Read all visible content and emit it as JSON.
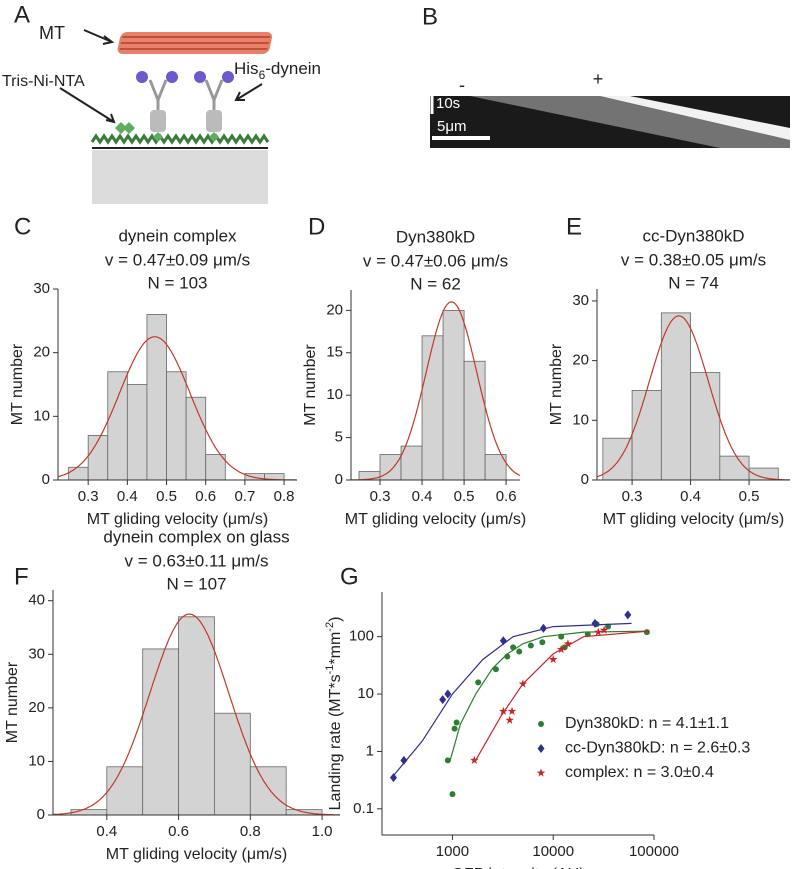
{
  "panel_letters": [
    "A",
    "B",
    "C",
    "D",
    "E",
    "F",
    "G"
  ],
  "diagram": {
    "mt": "MT",
    "linker": "Tris-Ni-NTA",
    "dynein": [
      "His",
      "6",
      "-dynein"
    ]
  },
  "kymograph": {
    "minus": "-",
    "plus": "+",
    "time_scale": "10s",
    "length_scale": "5μm"
  },
  "chart_data": [
    {
      "type": "histogram",
      "title": "dynein complex",
      "subtitle": "v = 0.47±0.09 μm/s",
      "annotation": "N = 103",
      "bins": [
        0.25,
        0.3,
        0.35,
        0.4,
        0.45,
        0.5,
        0.55,
        0.6,
        0.65,
        0.7,
        0.75,
        0.8
      ],
      "values": [
        2,
        7,
        17,
        15,
        26,
        17,
        13,
        4,
        0,
        1,
        1
      ],
      "color": "#d3d3d3",
      "fit": {
        "color": "#c0392b",
        "mean": 0.47,
        "sd": 0.09,
        "peak": 22.5
      },
      "xlim": [
        0.223,
        0.833
      ],
      "xticks": [
        0.3,
        0.4,
        0.5,
        0.6,
        0.7,
        0.8
      ],
      "ylim": [
        0,
        30
      ],
      "yticks": [
        0,
        10,
        20,
        30
      ],
      "xlabel": "MT gliding velocity (μm/s)",
      "ylabel": "MT number"
    },
    {
      "type": "histogram",
      "title": "Dyn380kD",
      "subtitle": "v = 0.47±0.06 μm/s",
      "annotation": "N = 62",
      "bins": [
        0.25,
        0.3,
        0.35,
        0.4,
        0.45,
        0.5,
        0.55,
        0.6
      ],
      "values": [
        1,
        3,
        4,
        17,
        20,
        14,
        3
      ],
      "color": "#d3d3d3",
      "fit": {
        "color": "#c0392b",
        "mean": 0.47,
        "sd": 0.06,
        "peak": 21
      },
      "xlim": [
        0.231,
        0.633
      ],
      "xticks": [
        0.3,
        0.4,
        0.5,
        0.6
      ],
      "ylim": [
        0,
        22.4
      ],
      "yticks": [
        0,
        5,
        10,
        15,
        20
      ],
      "xlabel": "MT gliding velocity (μm/s)",
      "ylabel": "MT number"
    },
    {
      "type": "histogram",
      "title": "cc-Dyn380kD",
      "subtitle": "v = 0.38±0.05 μm/s",
      "annotation": "N = 74",
      "bins": [
        0.25,
        0.3,
        0.35,
        0.4,
        0.45,
        0.5,
        0.55
      ],
      "values": [
        7,
        15,
        28,
        18,
        4,
        2
      ],
      "color": "#d3d3d3",
      "fit": {
        "color": "#c0392b",
        "mean": 0.38,
        "sd": 0.05,
        "peak": 27.5
      },
      "xlim": [
        0.24,
        0.57
      ],
      "xticks": [
        0.3,
        0.4,
        0.5
      ],
      "ylim": [
        0,
        32
      ],
      "yticks": [
        0,
        10,
        20,
        30
      ],
      "xlabel": "MT gliding velocity (μm/s)",
      "ylabel": "MT number"
    },
    {
      "type": "histogram",
      "title": "dynein complex on glass",
      "subtitle": "v = 0.63±0.11 μm/s",
      "annotation": "N = 107",
      "bins": [
        0.3,
        0.4,
        0.5,
        0.6,
        0.7,
        0.8,
        0.9,
        1.0
      ],
      "values": [
        1,
        9,
        31,
        37,
        19,
        9,
        1
      ],
      "color": "#d3d3d3",
      "fit": {
        "color": "#c0392b",
        "mean": 0.63,
        "sd": 0.11,
        "peak": 37.5
      },
      "xlim": [
        0.25,
        1.05
      ],
      "xticks": [
        0.4,
        0.6,
        0.8,
        {
          "value": 1,
          "label": "1.0"
        }
      ],
      "ylim": [
        0,
        42
      ],
      "yticks": [
        0,
        10,
        20,
        30,
        40
      ],
      "xlabel": "MT gliding velocity (μm/s)",
      "ylabel": "MT number"
    },
    {
      "type": "scatter",
      "xscale": "log",
      "yscale": "log",
      "xlim": [
        200,
        100000
      ],
      "xticks": [
        1000,
        10000,
        100000
      ],
      "ylim": [
        0.035,
        600
      ],
      "yticks": [
        0.1,
        1,
        10,
        100
      ],
      "xlabel": "GFP intensity (AU)",
      "ylabel": [
        "Landing rate (MT*s",
        "-1",
        "*mm",
        "-2",
        ")"
      ],
      "series": [
        {
          "name": "Dyn380kD: n = 4.1±1.1",
          "color": "#2e7d32",
          "marker": "circle",
          "x": [
            900,
            1000,
            1050,
            1100,
            1800,
            2700,
            3500,
            4000,
            4600,
            6000,
            7800,
            12000,
            13000,
            22000,
            27000,
            35000,
            85000
          ],
          "values": [
            0.7,
            0.18,
            2.5,
            3.2,
            16,
            27,
            45,
            65,
            55,
            70,
            80,
            100,
            65,
            110,
            165,
            150,
            120
          ],
          "fit_x": [
            950,
            1200,
            1700,
            2500,
            3500,
            5000,
            8000,
            20000,
            90000
          ],
          "fit_y": [
            0.7,
            3,
            10,
            28,
            50,
            75,
            100,
            120,
            125
          ]
        },
        {
          "name": "cc-Dyn380kD: n = 2.6±0.3",
          "color": "#2f2f8f",
          "marker": "diamond",
          "x": [
            260,
            330,
            800,
            900,
            3200,
            8000,
            26000,
            55000
          ],
          "values": [
            0.35,
            0.7,
            8,
            10,
            85,
            140,
            170,
            240
          ],
          "fit_x": [
            250,
            500,
            1000,
            2000,
            4000,
            10000,
            60000
          ],
          "fit_y": [
            0.35,
            1.5,
            10,
            40,
            100,
            150,
            170
          ]
        },
        {
          "name": "complex: n = 3.0±0.4",
          "color": "#c62828",
          "marker": "star",
          "x": [
            1650,
            3200,
            3700,
            3900,
            5000,
            10000,
            12000,
            14000,
            28000,
            32000
          ],
          "values": [
            0.7,
            5,
            3.5,
            5,
            15,
            40,
            60,
            75,
            120,
            130
          ],
          "fit_x": [
            1700,
            3000,
            5000,
            10000,
            20000,
            90000
          ],
          "fit_y": [
            0.7,
            4,
            15,
            50,
            100,
            125
          ]
        }
      ]
    }
  ]
}
